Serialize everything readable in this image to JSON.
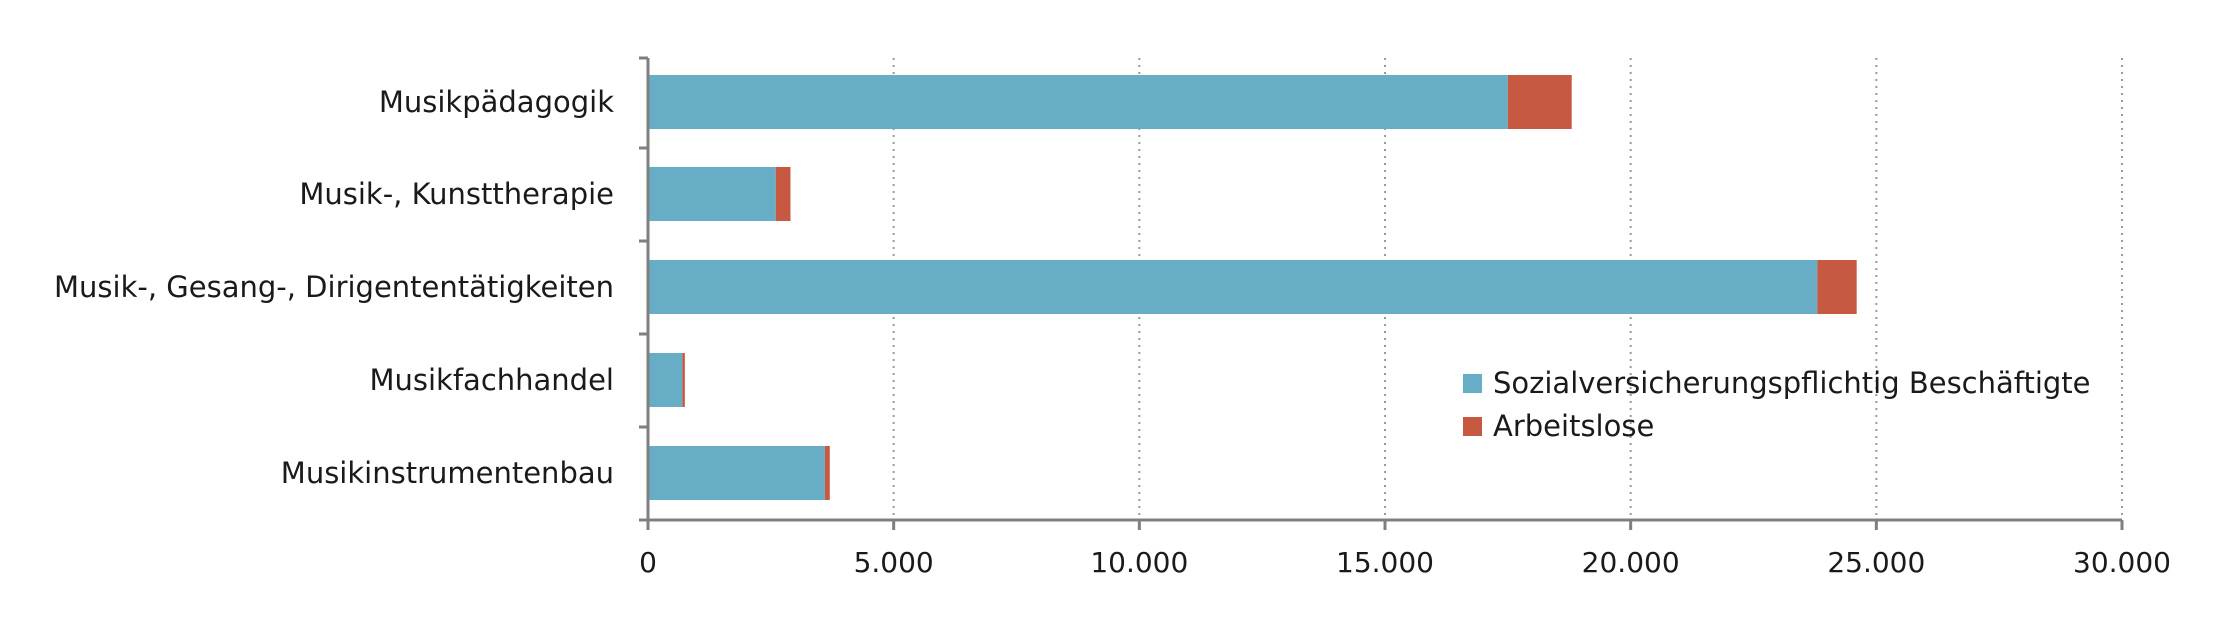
{
  "chart_data": {
    "type": "bar",
    "orientation": "horizontal",
    "stacked": true,
    "categories": [
      "Musikpädagogik",
      "Musik-, Kunsttherapie",
      "Musik-, Gesang-, Dirigententätigkeiten",
      "Musikfachhandel",
      "Musikinstrumentenbau"
    ],
    "series": [
      {
        "name": "Sozialversicherungspflichtig Beschäftigte",
        "color": "#67adc6",
        "values": [
          17500,
          2600,
          23800,
          700,
          3600
        ]
      },
      {
        "name": "Arbeitslose",
        "color": "#c75842",
        "values": [
          1300,
          300,
          800,
          50,
          100
        ]
      }
    ],
    "x_ticks": [
      "0",
      "5.000",
      "10.000",
      "15.000",
      "20.000",
      "25.000",
      "30.000"
    ],
    "xlim": [
      0,
      30000
    ],
    "grid": "vertical-dotted",
    "legend_position": "right-middle",
    "title": "",
    "xlabel": "",
    "ylabel": ""
  }
}
